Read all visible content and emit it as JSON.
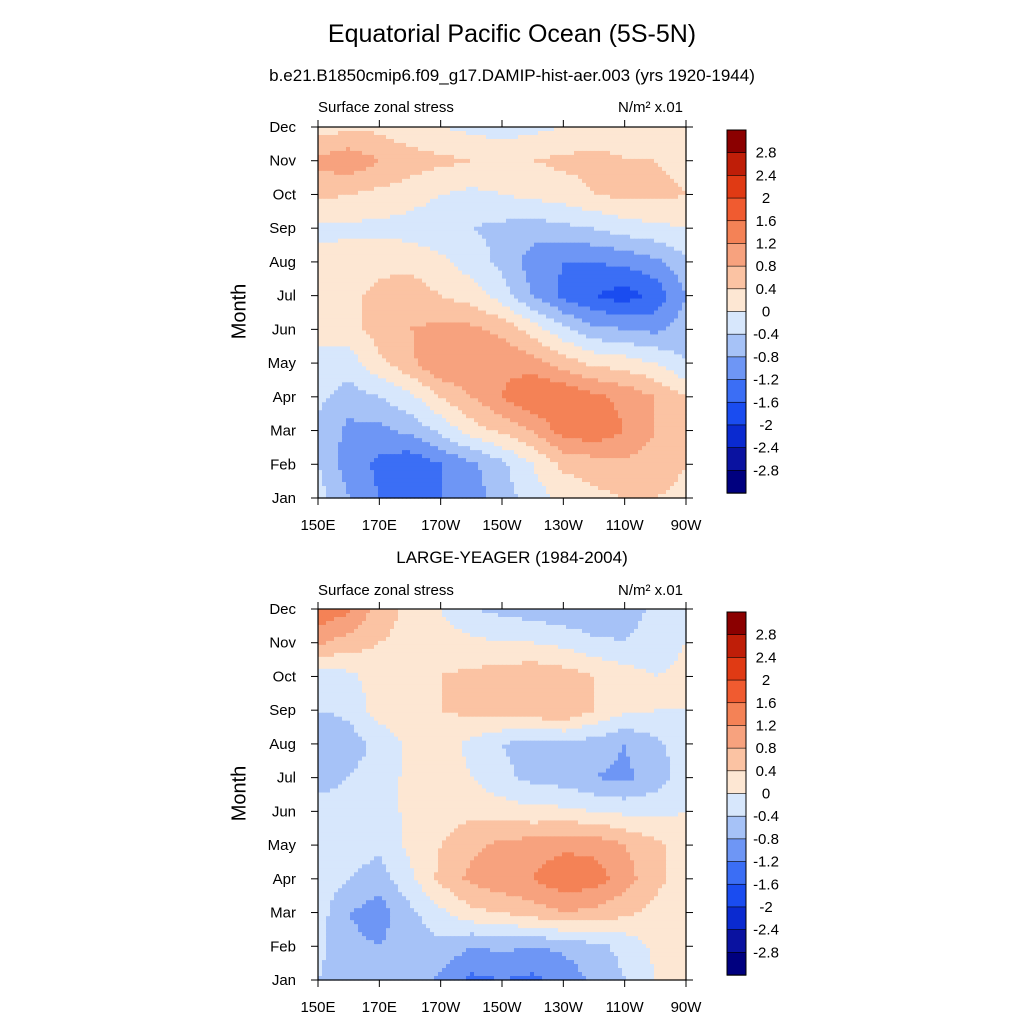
{
  "header": {
    "title": "Equatorial Pacific Ocean (5S-5N)",
    "subtitle": "b.e21.B1850cmip6.f09_g17.DAMIP-hist-aer.003 (yrs 1920-1944)",
    "second_panel_title": "LARGE-YEAGER (1984-2004)"
  },
  "colors": {
    "levels": [
      "#00007f",
      "#0a12a0",
      "#0a2ad0",
      "#1a4cf0",
      "#3b6ef5",
      "#6e96f5",
      "#a6c2f7",
      "#d7e7fc",
      "#fde7d3",
      "#fbc3a3",
      "#f7a27e",
      "#f48256",
      "#f05b30",
      "#e03a14",
      "#bf1e08",
      "#8b0000"
    ]
  },
  "colorbar": {
    "labels": [
      "2.8",
      "2.4",
      "2",
      "1.6",
      "1.2",
      "0.8",
      "0.4",
      "0",
      "-0.4",
      "-0.8",
      "-1.2",
      "-1.6",
      "-2",
      "-2.4",
      "-2.8"
    ]
  },
  "chart_data": [
    {
      "type": "heatmap",
      "title": "Surface zonal stress",
      "units": "N/m² x.01",
      "xlabel": "",
      "ylabel": "Month",
      "x_ticks": [
        "150E",
        "170E",
        "170W",
        "150W",
        "130W",
        "110W",
        "90W"
      ],
      "y_ticks": [
        "Jan",
        "Feb",
        "Mar",
        "Apr",
        "May",
        "Jun",
        "Jul",
        "Aug",
        "Sep",
        "Oct",
        "Nov",
        "Dec"
      ],
      "levels": [
        -2.8,
        -2.4,
        -2,
        -1.6,
        -1.2,
        -0.8,
        -0.4,
        0,
        0.4,
        0.8,
        1.2,
        1.6,
        2,
        2.4,
        2.8
      ],
      "x": [
        150,
        160,
        170,
        180,
        190,
        200,
        210,
        220,
        230,
        240,
        250,
        260,
        270
      ],
      "x_ticks_deg": [
        150,
        170,
        190,
        210,
        230,
        250,
        270
      ],
      "months": [
        1,
        2,
        3,
        4,
        5,
        6,
        7,
        8,
        9,
        10,
        11,
        12
      ],
      "values": [
        [
          -0.2,
          -0.8,
          -1.2,
          -1.3,
          -1.2,
          -1.0,
          -0.6,
          -0.2,
          0.1,
          0.3,
          0.4,
          0.4,
          0.3
        ],
        [
          -0.4,
          -1.0,
          -1.3,
          -1.5,
          -1.2,
          -0.9,
          -0.5,
          0.0,
          0.5,
          0.6,
          0.7,
          0.6,
          0.4
        ],
        [
          -0.5,
          -0.9,
          -0.9,
          -0.7,
          -0.3,
          0.2,
          0.5,
          0.8,
          1.4,
          1.5,
          1.2,
          0.8,
          0.4
        ],
        [
          -0.3,
          -0.6,
          -0.4,
          -0.1,
          0.4,
          0.8,
          1.2,
          1.6,
          1.6,
          1.3,
          1.1,
          0.8,
          0.4
        ],
        [
          -0.1,
          -0.2,
          0.3,
          0.7,
          1.2,
          1.2,
          1.1,
          1.0,
          0.6,
          0.3,
          0.2,
          0.0,
          -0.4
        ],
        [
          0.1,
          0.2,
          0.6,
          0.8,
          0.9,
          0.9,
          0.7,
          0.2,
          -0.3,
          -0.7,
          -0.8,
          -0.9,
          -0.6
        ],
        [
          0.2,
          0.3,
          0.5,
          0.6,
          0.4,
          0.2,
          -0.2,
          -0.8,
          -1.3,
          -1.6,
          -1.8,
          -1.5,
          -0.8
        ],
        [
          0.1,
          0.2,
          0.3,
          0.3,
          0.1,
          -0.2,
          -0.5,
          -1.0,
          -1.2,
          -1.2,
          -1.1,
          -0.9,
          -0.5
        ],
        [
          -0.1,
          -0.1,
          -0.1,
          -0.2,
          -0.3,
          -0.4,
          -0.5,
          -0.6,
          -0.5,
          -0.4,
          -0.2,
          -0.1,
          0.0
        ],
        [
          0.5,
          0.4,
          0.3,
          0.2,
          0.0,
          -0.1,
          0.0,
          0.1,
          0.2,
          0.4,
          0.5,
          0.5,
          0.4
        ],
        [
          0.9,
          1.1,
          0.8,
          0.6,
          0.5,
          0.4,
          0.3,
          0.4,
          0.5,
          0.5,
          0.4,
          0.4,
          0.3
        ],
        [
          0.2,
          0.3,
          0.3,
          0.1,
          0.0,
          -0.1,
          -0.2,
          -0.1,
          0.0,
          0.2,
          0.3,
          0.3,
          0.2
        ]
      ]
    },
    {
      "type": "heatmap",
      "title": "Surface zonal stress",
      "units": "N/m² x.01",
      "xlabel": "",
      "ylabel": "Month",
      "x_ticks": [
        "150E",
        "170E",
        "170W",
        "150W",
        "130W",
        "110W",
        "90W"
      ],
      "y_ticks": [
        "Jan",
        "Feb",
        "Mar",
        "Apr",
        "May",
        "Jun",
        "Jul",
        "Aug",
        "Sep",
        "Oct",
        "Nov",
        "Dec"
      ],
      "levels": [
        -2.8,
        -2.4,
        -2,
        -1.6,
        -1.2,
        -0.8,
        -0.4,
        0,
        0.4,
        0.8,
        1.2,
        1.6,
        2,
        2.4,
        2.8
      ],
      "x": [
        150,
        160,
        170,
        180,
        190,
        200,
        210,
        220,
        230,
        240,
        250,
        260,
        270
      ],
      "x_ticks_deg": [
        150,
        170,
        190,
        210,
        230,
        250,
        270
      ],
      "months": [
        1,
        2,
        3,
        4,
        5,
        6,
        7,
        8,
        9,
        10,
        11,
        12
      ],
      "values": [
        [
          -0.4,
          -0.6,
          -0.6,
          -0.6,
          -0.9,
          -1.3,
          -1.2,
          -1.3,
          -1.1,
          -0.7,
          -0.4,
          0.0,
          0.1
        ],
        [
          -0.3,
          -0.7,
          -0.8,
          -0.6,
          -0.5,
          -0.8,
          -0.7,
          -0.8,
          -0.7,
          -0.5,
          -0.3,
          0.1,
          0.2
        ],
        [
          -0.2,
          -0.8,
          -1.0,
          -0.5,
          -0.1,
          0.3,
          0.4,
          0.6,
          0.8,
          0.7,
          0.5,
          0.3,
          0.2
        ],
        [
          -0.1,
          -0.4,
          -0.6,
          -0.1,
          0.5,
          0.9,
          1.1,
          1.2,
          1.5,
          1.4,
          1.0,
          0.5,
          0.2
        ],
        [
          -0.1,
          -0.2,
          -0.3,
          0.1,
          0.4,
          0.7,
          0.9,
          1.0,
          1.1,
          1.1,
          0.8,
          0.5,
          0.2
        ],
        [
          -0.3,
          -0.3,
          -0.2,
          0.1,
          0.2,
          0.3,
          0.2,
          0.1,
          0.1,
          0.0,
          -0.1,
          -0.1,
          0.0
        ],
        [
          -0.5,
          -0.4,
          -0.2,
          0.1,
          0.2,
          0.0,
          -0.3,
          -0.5,
          -0.6,
          -0.8,
          -0.9,
          -0.6,
          -0.2
        ],
        [
          -0.8,
          -0.6,
          -0.3,
          0.1,
          0.2,
          -0.1,
          -0.4,
          -0.6,
          -0.5,
          -0.6,
          -0.8,
          -0.5,
          -0.2
        ],
        [
          -0.4,
          -0.3,
          0.2,
          0.3,
          0.4,
          0.5,
          0.6,
          0.7,
          0.8,
          0.4,
          0.1,
          0.0,
          0.0
        ],
        [
          -0.3,
          -0.1,
          0.2,
          0.3,
          0.4,
          0.5,
          0.6,
          0.7,
          0.6,
          0.4,
          0.2,
          0.0,
          0.1
        ],
        [
          0.9,
          0.6,
          0.4,
          0.3,
          0.2,
          0.1,
          0.0,
          0.0,
          -0.1,
          -0.3,
          -0.4,
          -0.2,
          0.0
        ],
        [
          1.5,
          1.3,
          0.6,
          0.3,
          0.0,
          -0.4,
          -0.5,
          -0.6,
          -0.7,
          -0.8,
          -0.6,
          -0.3,
          0.0
        ]
      ]
    }
  ]
}
